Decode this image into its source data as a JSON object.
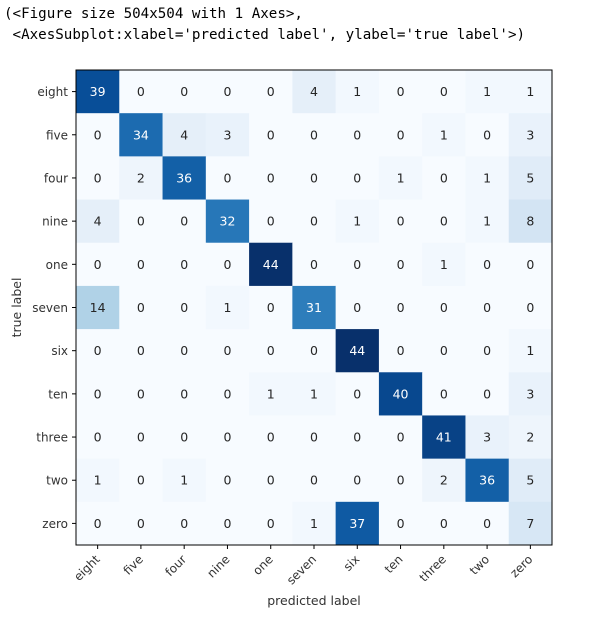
{
  "output": {
    "line1": "(<Figure size 504x504 with 1 Axes>,",
    "line2": " <AxesSubplot:xlabel='predicted label', ylabel='true label'>)"
  },
  "chart_data": {
    "type": "heatmap",
    "title": "",
    "xlabel": "predicted label",
    "ylabel": "true label",
    "x_categories": [
      "eight",
      "five",
      "four",
      "nine",
      "one",
      "seven",
      "six",
      "ten",
      "three",
      "two",
      "zero"
    ],
    "y_categories": [
      "eight",
      "five",
      "four",
      "nine",
      "one",
      "seven",
      "six",
      "ten",
      "three",
      "two",
      "zero"
    ],
    "values": [
      [
        39,
        0,
        0,
        0,
        0,
        4,
        1,
        0,
        0,
        1,
        1
      ],
      [
        0,
        34,
        4,
        3,
        0,
        0,
        0,
        0,
        1,
        0,
        3
      ],
      [
        0,
        2,
        36,
        0,
        0,
        0,
        0,
        1,
        0,
        1,
        5
      ],
      [
        4,
        0,
        0,
        32,
        0,
        0,
        1,
        0,
        0,
        1,
        8
      ],
      [
        0,
        0,
        0,
        0,
        44,
        0,
        0,
        0,
        1,
        0,
        0
      ],
      [
        14,
        0,
        0,
        1,
        0,
        31,
        0,
        0,
        0,
        0,
        0
      ],
      [
        0,
        0,
        0,
        0,
        0,
        0,
        44,
        0,
        0,
        0,
        1
      ],
      [
        0,
        0,
        0,
        0,
        1,
        1,
        0,
        40,
        0,
        0,
        3
      ],
      [
        0,
        0,
        0,
        0,
        0,
        0,
        0,
        0,
        41,
        3,
        2
      ],
      [
        1,
        0,
        1,
        0,
        0,
        0,
        0,
        0,
        2,
        36,
        5
      ],
      [
        0,
        0,
        0,
        0,
        0,
        1,
        37,
        0,
        0,
        0,
        7
      ]
    ],
    "colormap": "Blues",
    "value_range": [
      0,
      44
    ],
    "grid": false,
    "legend": "none"
  }
}
